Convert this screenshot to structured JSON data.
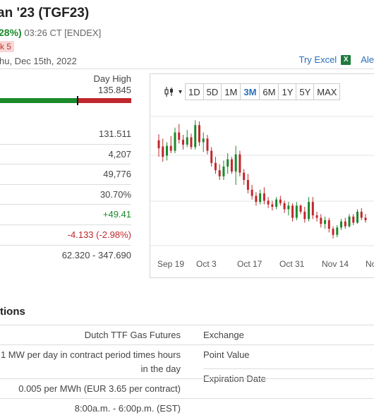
{
  "header": {
    "title": "an '23 (TGF23)",
    "change_pct": "28%)",
    "time": "03:26 CT [ENDEX]",
    "badge": "k 5",
    "date": "hu, Dec 15th, 2022",
    "try_excel": "Try Excel",
    "excel_icon": "excel-icon",
    "alert_link": "Ale"
  },
  "range": {
    "day_high_label": "Day High",
    "day_high_value": "135.845",
    "position": 0.59
  },
  "stats": {
    "rows": [
      "131.511",
      "4,207",
      "49,776",
      "30.70%",
      "+49.41",
      "-4.133 (-2.98%)",
      "62.320 - 347.690"
    ]
  },
  "chart": {
    "tool_icon": "candlestick-icon",
    "ranges": [
      "1D",
      "5D",
      "1M",
      "3M",
      "6M",
      "1Y",
      "5Y",
      "MAX"
    ],
    "active_range": "3M",
    "x_labels": [
      "Sep 19",
      "Oct 3",
      "Oct 17",
      "Oct 31",
      "Nov 14",
      "No"
    ]
  },
  "chart_data": {
    "type": "candlestick",
    "x_tick_labels": [
      "Sep 19",
      "Oct 3",
      "Oct 17",
      "Oct 31",
      "Nov 14",
      "No"
    ],
    "colors": {
      "up": "#1a8a2a",
      "down": "#c0272d"
    },
    "series": [
      {
        "o": 205,
        "h": 215,
        "l": 178,
        "c": 192
      },
      {
        "o": 195,
        "h": 208,
        "l": 170,
        "c": 178
      },
      {
        "o": 180,
        "h": 202,
        "l": 172,
        "c": 196
      },
      {
        "o": 196,
        "h": 212,
        "l": 184,
        "c": 188
      },
      {
        "o": 188,
        "h": 226,
        "l": 184,
        "c": 218
      },
      {
        "o": 218,
        "h": 232,
        "l": 200,
        "c": 206
      },
      {
        "o": 206,
        "h": 214,
        "l": 190,
        "c": 198
      },
      {
        "o": 198,
        "h": 222,
        "l": 194,
        "c": 210
      },
      {
        "o": 210,
        "h": 216,
        "l": 190,
        "c": 194
      },
      {
        "o": 194,
        "h": 238,
        "l": 190,
        "c": 230
      },
      {
        "o": 230,
        "h": 236,
        "l": 196,
        "c": 202
      },
      {
        "o": 202,
        "h": 218,
        "l": 186,
        "c": 208
      },
      {
        "o": 208,
        "h": 214,
        "l": 182,
        "c": 188
      },
      {
        "o": 188,
        "h": 194,
        "l": 162,
        "c": 168
      },
      {
        "o": 168,
        "h": 178,
        "l": 150,
        "c": 156
      },
      {
        "o": 156,
        "h": 166,
        "l": 140,
        "c": 146
      },
      {
        "o": 146,
        "h": 172,
        "l": 140,
        "c": 162
      },
      {
        "o": 162,
        "h": 184,
        "l": 150,
        "c": 174
      },
      {
        "o": 174,
        "h": 178,
        "l": 150,
        "c": 154
      },
      {
        "o": 154,
        "h": 196,
        "l": 132,
        "c": 182
      },
      {
        "o": 182,
        "h": 188,
        "l": 146,
        "c": 152
      },
      {
        "o": 152,
        "h": 158,
        "l": 132,
        "c": 140
      },
      {
        "o": 140,
        "h": 150,
        "l": 118,
        "c": 124
      },
      {
        "o": 124,
        "h": 132,
        "l": 108,
        "c": 114
      },
      {
        "o": 114,
        "h": 120,
        "l": 98,
        "c": 104
      },
      {
        "o": 104,
        "h": 124,
        "l": 100,
        "c": 118
      },
      {
        "o": 118,
        "h": 128,
        "l": 100,
        "c": 106
      },
      {
        "o": 106,
        "h": 112,
        "l": 94,
        "c": 100
      },
      {
        "o": 100,
        "h": 106,
        "l": 90,
        "c": 96
      },
      {
        "o": 96,
        "h": 112,
        "l": 92,
        "c": 108
      },
      {
        "o": 108,
        "h": 114,
        "l": 98,
        "c": 102
      },
      {
        "o": 102,
        "h": 106,
        "l": 86,
        "c": 92
      },
      {
        "o": 92,
        "h": 104,
        "l": 82,
        "c": 98
      },
      {
        "o": 98,
        "h": 102,
        "l": 72,
        "c": 78
      },
      {
        "o": 78,
        "h": 104,
        "l": 74,
        "c": 98
      },
      {
        "o": 98,
        "h": 100,
        "l": 84,
        "c": 88
      },
      {
        "o": 88,
        "h": 96,
        "l": 70,
        "c": 76
      },
      {
        "o": 76,
        "h": 112,
        "l": 72,
        "c": 104
      },
      {
        "o": 104,
        "h": 112,
        "l": 76,
        "c": 82
      },
      {
        "o": 82,
        "h": 88,
        "l": 72,
        "c": 78
      },
      {
        "o": 78,
        "h": 84,
        "l": 62,
        "c": 68
      },
      {
        "o": 68,
        "h": 80,
        "l": 60,
        "c": 74
      },
      {
        "o": 74,
        "h": 78,
        "l": 54,
        "c": 60
      },
      {
        "o": 60,
        "h": 64,
        "l": 44,
        "c": 50
      },
      {
        "o": 50,
        "h": 66,
        "l": 46,
        "c": 62
      },
      {
        "o": 62,
        "h": 76,
        "l": 58,
        "c": 72
      },
      {
        "o": 72,
        "h": 78,
        "l": 60,
        "c": 64
      },
      {
        "o": 64,
        "h": 84,
        "l": 62,
        "c": 80
      },
      {
        "o": 80,
        "h": 84,
        "l": 66,
        "c": 70
      },
      {
        "o": 70,
        "h": 92,
        "l": 68,
        "c": 88
      },
      {
        "o": 88,
        "h": 94,
        "l": 74,
        "c": 78
      },
      {
        "o": 78,
        "h": 84,
        "l": 70,
        "c": 74
      }
    ]
  },
  "specs": {
    "title": "tions",
    "rows": [
      {
        "value": "Dutch TTF Gas Futures",
        "key": "Exchange"
      },
      {
        "value": "1 MW per day in contract period times hours in the day",
        "key": "Point Value",
        "key2": "Expiration Date"
      },
      {
        "value": "0.005 per MWh (EUR 3.65 per contract)",
        "key": ""
      },
      {
        "value": "8:00a.m. - 6:00p.m. (EST)",
        "key": ""
      }
    ]
  }
}
